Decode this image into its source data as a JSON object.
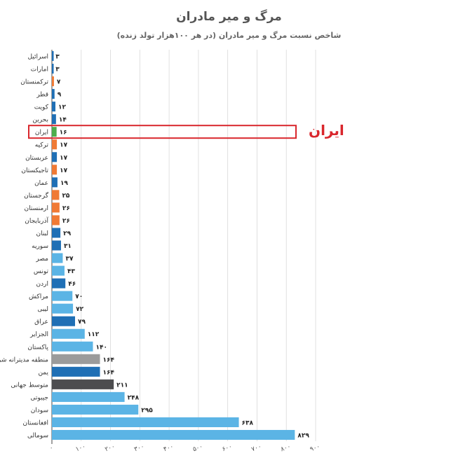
{
  "chart_data": {
    "type": "bar",
    "orientation": "horizontal",
    "title": "مرگ و میر مادران",
    "subtitle": "شاخص نسبت مرگ و میر مادران (در هر ۱۰۰هزار تولد زنده)",
    "categories": [
      "اسرائیل",
      "امارات",
      "ترکمنستان",
      "قطر",
      "کویت",
      "بحرین",
      "ایران",
      "ترکیه",
      "عربستان",
      "تاجیکستان",
      "عمان",
      "گرجستان",
      "ارمنستان",
      "آذربایجان",
      "لبنان",
      "سوریه",
      "مصر",
      "تونس",
      "اردن",
      "مراکش",
      "لیبی",
      "عراق",
      "الجزایر",
      "پاکستان",
      "منطقه مدیترانه شرقی",
      "یمن",
      "متوسط جهانی",
      "جیبوتی",
      "سودان",
      "افغانستان",
      "سومالی"
    ],
    "values": [
      3,
      3,
      7,
      9,
      12,
      14,
      16,
      17,
      17,
      17,
      19,
      25,
      26,
      26,
      29,
      31,
      37,
      43,
      46,
      70,
      72,
      79,
      112,
      140,
      164,
      164,
      211,
      248,
      295,
      638,
      829
    ],
    "value_labels": [
      "۳",
      "۳",
      "۷",
      "۹",
      "۱۲",
      "۱۴",
      "۱۶",
      "۱۷",
      "۱۷",
      "۱۷",
      "۱۹",
      "۲۵",
      "۲۶",
      "۲۶",
      "۲۹",
      "۳۱",
      "۳۷",
      "۴۳",
      "۴۶",
      "۷۰",
      "۷۲",
      "۷۹",
      "۱۱۲",
      "۱۴۰",
      "۱۶۴",
      "۱۶۴",
      "۲۱۱",
      "۲۴۸",
      "۲۹۵",
      "۶۳۸",
      "۸۲۹"
    ],
    "bar_colors": [
      "#1f6fb5",
      "#1f6fb5",
      "#f07a35",
      "#1f6fb5",
      "#1f6fb5",
      "#1f6fb5",
      "#4cae4c",
      "#f07a35",
      "#1f6fb5",
      "#f07a35",
      "#1f6fb5",
      "#f07a35",
      "#f07a35",
      "#f07a35",
      "#1f6fb5",
      "#1f6fb5",
      "#5bb4e5",
      "#5bb4e5",
      "#1f6fb5",
      "#5bb4e5",
      "#5bb4e5",
      "#1f6fb5",
      "#5bb4e5",
      "#5bb4e5",
      "#9b9b9b",
      "#1f6fb5",
      "#4d4d4f",
      "#5bb4e5",
      "#5bb4e5",
      "#5bb4e5",
      "#5bb4e5"
    ],
    "x_ticks": [
      0,
      100,
      200,
      300,
      400,
      500,
      600,
      700,
      800,
      900
    ],
    "x_tick_labels": [
      "۰",
      "۱۰۰",
      "۲۰۰",
      "۳۰۰",
      "۴۰۰",
      "۵۰۰",
      "۶۰۰",
      "۷۰۰",
      "۸۰۰",
      "۹۰۰"
    ],
    "xlim": [
      0,
      900
    ],
    "grid": true,
    "highlight": {
      "category": "ایران",
      "label": "ایران",
      "color": "#d9262c"
    }
  }
}
